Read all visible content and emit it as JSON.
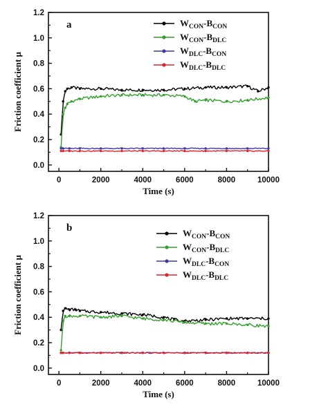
{
  "chart_data": [
    {
      "type": "line",
      "panel_label": "a",
      "xlabel": "Time (s)",
      "ylabel": "Friction coefficient μ",
      "xlim": [
        -500,
        10000
      ],
      "ylim": [
        -0.05,
        1.2
      ],
      "xticks": [
        0,
        2000,
        4000,
        6000,
        8000,
        10000
      ],
      "xtick_labels": [
        "0",
        "2000",
        "4000",
        "6000",
        "8000",
        "10000"
      ],
      "yticks": [
        0.0,
        0.2,
        0.4,
        0.6,
        0.8,
        1.0,
        1.2
      ],
      "ytick_labels": [
        "0.0",
        "0.2",
        "0.4",
        "0.6",
        "0.8",
        "1.0",
        "1.2"
      ],
      "grid": false,
      "legend_position": "top-right",
      "series": [
        {
          "name": "W_CON-B_CON",
          "legend_main": [
            "W",
            "-B"
          ],
          "legend_sub": [
            "CON",
            "CON"
          ],
          "color": "#000000",
          "x": [
            100,
            200,
            300,
            400,
            600,
            1000,
            2000,
            3000,
            4000,
            5000,
            6000,
            7000,
            8000,
            9000,
            9500,
            10000
          ],
          "y": [
            0.24,
            0.5,
            0.58,
            0.6,
            0.61,
            0.6,
            0.6,
            0.59,
            0.59,
            0.59,
            0.6,
            0.61,
            0.61,
            0.62,
            0.58,
            0.61
          ]
        },
        {
          "name": "W_CON-B_DLC",
          "legend_main": [
            "W",
            "-B"
          ],
          "legend_sub": [
            "CON",
            "DLC"
          ],
          "color": "#33a02c",
          "x": [
            100,
            200,
            300,
            400,
            600,
            1000,
            2000,
            3000,
            4000,
            5000,
            6000,
            6500,
            7000,
            8000,
            9000,
            10000
          ],
          "y": [
            0.14,
            0.4,
            0.45,
            0.48,
            0.5,
            0.52,
            0.54,
            0.55,
            0.55,
            0.55,
            0.54,
            0.5,
            0.51,
            0.5,
            0.51,
            0.53
          ]
        },
        {
          "name": "W_DLC-B_CON",
          "legend_main": [
            "W",
            "-B"
          ],
          "legend_sub": [
            "DLC",
            "CON"
          ],
          "color": "#3a3aa8",
          "x": [
            100,
            200,
            500,
            1000,
            2000,
            3000,
            4000,
            5000,
            6000,
            7000,
            8000,
            9000,
            10000
          ],
          "y": [
            0.13,
            0.13,
            0.13,
            0.13,
            0.13,
            0.13,
            0.13,
            0.13,
            0.13,
            0.13,
            0.13,
            0.13,
            0.13
          ]
        },
        {
          "name": "W_DLC-B_DLC",
          "legend_main": [
            "W",
            "-B"
          ],
          "legend_sub": [
            "DLC",
            "DLC"
          ],
          "color": "#e4202a",
          "x": [
            100,
            200,
            500,
            1000,
            2000,
            3000,
            4000,
            5000,
            6000,
            7000,
            8000,
            9000,
            10000
          ],
          "y": [
            0.11,
            0.11,
            0.11,
            0.11,
            0.11,
            0.11,
            0.11,
            0.11,
            0.11,
            0.11,
            0.11,
            0.11,
            0.11
          ]
        }
      ]
    },
    {
      "type": "line",
      "panel_label": "b",
      "xlabel": "Time (s)",
      "ylabel": "Friction coefficient μ",
      "xlim": [
        -500,
        10000
      ],
      "ylim": [
        -0.05,
        1.2
      ],
      "xticks": [
        0,
        2000,
        4000,
        6000,
        8000,
        10000
      ],
      "xtick_labels": [
        "0",
        "2000",
        "4000",
        "6000",
        "8000",
        "10000"
      ],
      "yticks": [
        0.0,
        0.2,
        0.4,
        0.6,
        0.8,
        1.0,
        1.2
      ],
      "ytick_labels": [
        "0.0",
        "0.2",
        "0.4",
        "0.6",
        "0.8",
        "1.0",
        "1.2"
      ],
      "grid": false,
      "legend_position": "top-right",
      "series": [
        {
          "name": "W_CON-B_CON",
          "legend_main": [
            "W",
            "-B"
          ],
          "legend_sub": [
            "CON",
            "CON"
          ],
          "color": "#000000",
          "x": [
            100,
            200,
            300,
            500,
            800,
            1000,
            2000,
            3000,
            4000,
            5000,
            5500,
            6000,
            7000,
            8000,
            9000,
            10000
          ],
          "y": [
            0.3,
            0.45,
            0.47,
            0.46,
            0.46,
            0.45,
            0.44,
            0.43,
            0.42,
            0.4,
            0.38,
            0.37,
            0.38,
            0.39,
            0.39,
            0.39
          ]
        },
        {
          "name": "W_CON-B_DLC",
          "legend_main": [
            "W",
            "-B"
          ],
          "legend_sub": [
            "CON",
            "DLC"
          ],
          "color": "#33a02c",
          "x": [
            100,
            200,
            300,
            500,
            1000,
            2000,
            3000,
            4000,
            5000,
            6000,
            7000,
            8000,
            9000,
            10000
          ],
          "y": [
            0.14,
            0.37,
            0.41,
            0.41,
            0.41,
            0.4,
            0.41,
            0.39,
            0.38,
            0.36,
            0.35,
            0.35,
            0.34,
            0.33
          ]
        },
        {
          "name": "W_DLC-B_CON",
          "legend_main": [
            "W",
            "-B"
          ],
          "legend_sub": [
            "DLC",
            "CON"
          ],
          "color": "#3a3aa8",
          "x": [
            100,
            200,
            500,
            1000,
            2000,
            3000,
            4000,
            5000,
            6000,
            7000,
            8000,
            9000,
            10000
          ],
          "y": [
            0.12,
            0.12,
            0.12,
            0.12,
            0.12,
            0.12,
            0.12,
            0.12,
            0.12,
            0.12,
            0.12,
            0.12,
            0.12
          ]
        },
        {
          "name": "W_DLC-B_DLC",
          "legend_main": [
            "W",
            "-B"
          ],
          "legend_sub": [
            "DLC",
            "DLC"
          ],
          "color": "#e4202a",
          "x": [
            100,
            200,
            500,
            1000,
            2000,
            3000,
            4000,
            5000,
            6000,
            7000,
            8000,
            9000,
            10000
          ],
          "y": [
            0.12,
            0.12,
            0.12,
            0.12,
            0.12,
            0.12,
            0.12,
            0.12,
            0.12,
            0.12,
            0.12,
            0.12,
            0.12
          ]
        }
      ]
    }
  ]
}
